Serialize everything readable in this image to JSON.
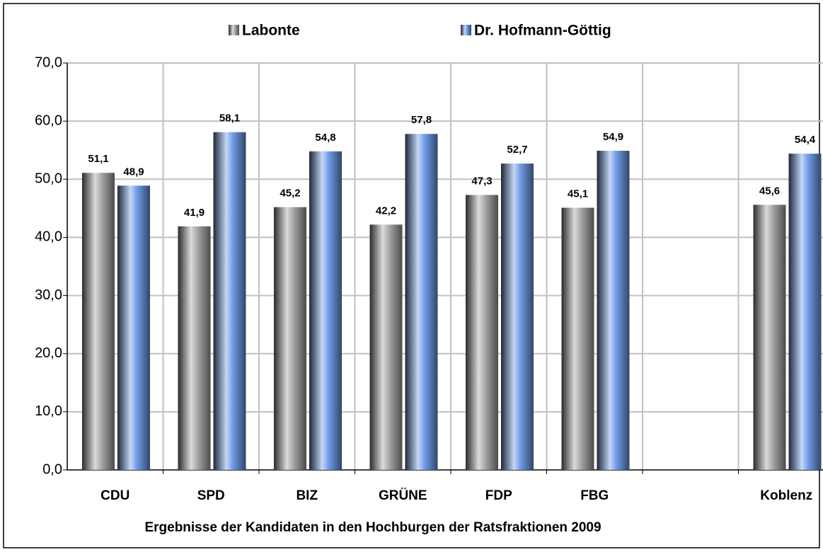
{
  "chart_data": {
    "type": "bar",
    "title": "Ergebnisse der Kandidaten in den Hochburgen der Ratsfraktionen 2009",
    "categories": [
      "CDU",
      "SPD",
      "BIZ",
      "GRÜNE",
      "FDP",
      "FBG",
      null,
      "Koblenz"
    ],
    "series": [
      {
        "name": "Labonte",
        "color": "#a6a6a6",
        "label_color": "#7f7f7f",
        "values": [
          51.1,
          41.9,
          45.2,
          42.2,
          47.3,
          45.1,
          null,
          45.6
        ],
        "value_labels": [
          "51,1",
          "41,9",
          "45,2",
          "42,2",
          "47,3",
          "45,1",
          null,
          "45,6"
        ]
      },
      {
        "name": "Dr. Hofmann-Göttig",
        "color": "#6f9be6",
        "label_color": "#2e3192",
        "values": [
          48.9,
          58.1,
          54.8,
          57.8,
          52.7,
          54.9,
          null,
          54.4
        ],
        "value_labels": [
          "48,9",
          "58,1",
          "54,8",
          "57,8",
          "52,7",
          "54,9",
          null,
          "54,4"
        ]
      }
    ],
    "ylim": [
      0,
      70
    ],
    "yticks": [
      {
        "value": 0,
        "label": "0,0"
      },
      {
        "value": 10,
        "label": "10,0"
      },
      {
        "value": 20,
        "label": "20,0"
      },
      {
        "value": 30,
        "label": "30,0"
      },
      {
        "value": 40,
        "label": "40,0"
      },
      {
        "value": 50,
        "label": "50,0"
      },
      {
        "value": 60,
        "label": "60,0"
      },
      {
        "value": 70,
        "label": "70,0"
      }
    ],
    "grid": true,
    "legend": "top"
  }
}
